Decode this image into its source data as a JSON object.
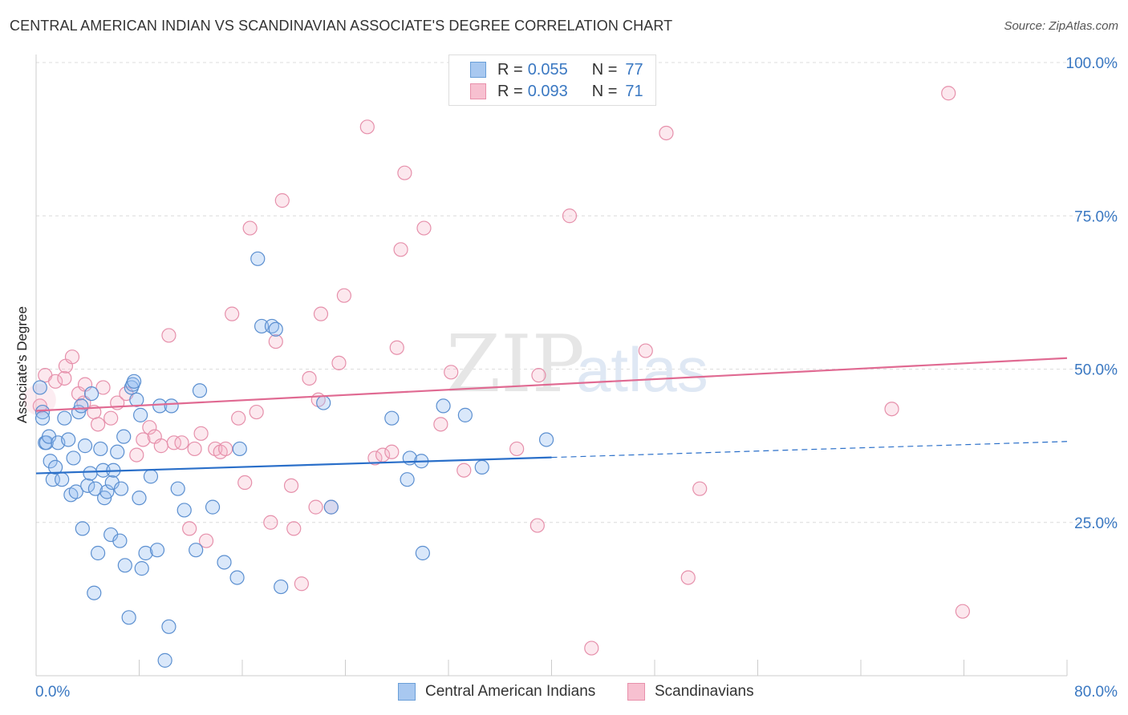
{
  "title": "CENTRAL AMERICAN INDIAN VS SCANDINAVIAN ASSOCIATE'S DEGREE CORRELATION CHART",
  "source": "Source: ZipAtlas.com",
  "watermark": {
    "zip": "ZIP",
    "atlas": "atlas"
  },
  "legend": {
    "rows": [
      {
        "r_label": "R =",
        "r_value": "0.055",
        "n_label": "N =",
        "n_value": "77",
        "color": "#a8c8f0",
        "border": "#6a9fd8"
      },
      {
        "r_label": "R =",
        "r_value": "0.093",
        "n_label": "N =",
        "n_value": "71",
        "color": "#f7c0d0",
        "border": "#e890ab"
      }
    ]
  },
  "bottom_legend": {
    "series1": "Central American Indians",
    "series2": "Scandinavians"
  },
  "colors": {
    "blue_fill": "rgba(150,190,240,0.35)",
    "blue_stroke": "#5b8fd0",
    "blue_line": "#2a6fc9",
    "pink_fill": "rgba(245,180,200,0.3)",
    "pink_stroke": "#e690ab",
    "pink_line": "#e06a92",
    "axis_text": "#3a78c2"
  },
  "chart_data": {
    "type": "scatter",
    "title": "CENTRAL AMERICAN INDIAN VS SCANDINAVIAN ASSOCIATE'S DEGREE CORRELATION CHART",
    "xlabel": "",
    "ylabel": "Associate's Degree",
    "xlim": [
      0,
      80
    ],
    "ylim": [
      0,
      100
    ],
    "x_ticks": [
      "0.0%",
      "80.0%"
    ],
    "y_ticks": [
      "25.0%",
      "50.0%",
      "75.0%",
      "100.0%"
    ],
    "grid": true,
    "series": [
      {
        "name": "Central American Indians",
        "r": 0.055,
        "n": 77,
        "trend": {
          "x_start": 0,
          "y_start": 33.0,
          "x_solid_end": 40,
          "y_solid_end": 35.6,
          "x_end": 80,
          "y_end": 38.2
        },
        "points": [
          [
            0.3,
            47
          ],
          [
            0.5,
            43
          ],
          [
            0.5,
            42
          ],
          [
            0.7,
            38
          ],
          [
            0.8,
            38
          ],
          [
            1.0,
            39
          ],
          [
            1.1,
            35
          ],
          [
            1.3,
            32
          ],
          [
            1.5,
            34
          ],
          [
            1.7,
            38
          ],
          [
            2.0,
            32
          ],
          [
            2.2,
            42
          ],
          [
            2.5,
            38.5
          ],
          [
            2.7,
            29.5
          ],
          [
            2.9,
            35.5
          ],
          [
            3.1,
            30
          ],
          [
            3.3,
            43
          ],
          [
            3.5,
            44
          ],
          [
            3.6,
            24
          ],
          [
            3.8,
            37.5
          ],
          [
            4.0,
            31
          ],
          [
            4.2,
            33
          ],
          [
            4.3,
            46
          ],
          [
            4.5,
            13.5
          ],
          [
            4.6,
            30.5
          ],
          [
            4.8,
            20
          ],
          [
            5.0,
            37
          ],
          [
            5.2,
            33.5
          ],
          [
            5.3,
            29
          ],
          [
            5.5,
            30
          ],
          [
            5.8,
            23
          ],
          [
            5.9,
            31.5
          ],
          [
            6.0,
            33.5
          ],
          [
            6.3,
            36.5
          ],
          [
            6.5,
            22
          ],
          [
            6.6,
            30.5
          ],
          [
            6.8,
            39
          ],
          [
            6.9,
            18
          ],
          [
            7.2,
            9.5
          ],
          [
            7.4,
            47
          ],
          [
            7.5,
            47.5
          ],
          [
            7.6,
            48
          ],
          [
            7.8,
            45
          ],
          [
            8.0,
            29
          ],
          [
            8.1,
            42.5
          ],
          [
            8.2,
            17.5
          ],
          [
            8.5,
            20
          ],
          [
            8.9,
            32.5
          ],
          [
            9.4,
            20.5
          ],
          [
            9.6,
            44
          ],
          [
            10.0,
            2.5
          ],
          [
            10.3,
            8
          ],
          [
            10.5,
            44
          ],
          [
            11.0,
            30.5
          ],
          [
            11.5,
            27
          ],
          [
            12.4,
            20.5
          ],
          [
            12.7,
            46.5
          ],
          [
            13.7,
            27.5
          ],
          [
            14.6,
            18.5
          ],
          [
            15.6,
            16
          ],
          [
            15.8,
            37
          ],
          [
            17.2,
            68
          ],
          [
            17.5,
            57
          ],
          [
            18.3,
            57
          ],
          [
            19.0,
            14.5
          ],
          [
            22.3,
            44.5
          ],
          [
            22.9,
            27.5
          ],
          [
            27.6,
            42
          ],
          [
            28.8,
            32
          ],
          [
            29.0,
            35.5
          ],
          [
            29.9,
            35
          ],
          [
            30.0,
            20
          ],
          [
            31.6,
            44
          ],
          [
            33.3,
            42.5
          ],
          [
            34.6,
            34
          ],
          [
            39.6,
            38.5
          ],
          [
            18.6,
            56.5
          ]
        ]
      },
      {
        "name": "Scandinavians",
        "r": 0.093,
        "n": 71,
        "trend": {
          "x_start": 0,
          "y_start": 43.2,
          "x_end": 80,
          "y_end": 51.8
        },
        "points": [
          [
            0.3,
            44
          ],
          [
            0.7,
            49
          ],
          [
            1.5,
            48
          ],
          [
            2.2,
            48.5
          ],
          [
            2.3,
            50.5
          ],
          [
            2.8,
            52
          ],
          [
            3.3,
            46
          ],
          [
            3.7,
            44.5
          ],
          [
            3.8,
            47.5
          ],
          [
            4.5,
            43
          ],
          [
            4.8,
            41
          ],
          [
            5.2,
            47
          ],
          [
            5.8,
            42
          ],
          [
            6.3,
            44.5
          ],
          [
            7.0,
            46
          ],
          [
            7.8,
            36
          ],
          [
            8.3,
            38.5
          ],
          [
            8.8,
            40.5
          ],
          [
            9.2,
            39
          ],
          [
            9.7,
            37.5
          ],
          [
            10.3,
            55.5
          ],
          [
            10.7,
            38
          ],
          [
            11.3,
            38
          ],
          [
            11.9,
            24
          ],
          [
            12.3,
            37
          ],
          [
            12.8,
            39.5
          ],
          [
            13.2,
            22
          ],
          [
            13.9,
            37
          ],
          [
            14.3,
            36.5
          ],
          [
            14.7,
            37
          ],
          [
            15.2,
            59
          ],
          [
            15.7,
            42
          ],
          [
            16.2,
            31.5
          ],
          [
            16.6,
            73
          ],
          [
            17.1,
            43
          ],
          [
            18.2,
            25
          ],
          [
            18.6,
            54.5
          ],
          [
            19.1,
            77.5
          ],
          [
            19.8,
            31
          ],
          [
            20.0,
            24
          ],
          [
            20.6,
            15
          ],
          [
            21.2,
            48.5
          ],
          [
            21.7,
            27.5
          ],
          [
            22.1,
            59
          ],
          [
            22.9,
            27.5
          ],
          [
            23.5,
            51
          ],
          [
            23.9,
            62
          ],
          [
            25.7,
            89.5
          ],
          [
            26.3,
            35.5
          ],
          [
            26.9,
            36
          ],
          [
            27.6,
            36.5
          ],
          [
            28.0,
            53.5
          ],
          [
            28.3,
            69.5
          ],
          [
            28.6,
            82
          ],
          [
            30.1,
            73
          ],
          [
            31.4,
            41
          ],
          [
            32.2,
            49.5
          ],
          [
            33.2,
            33.5
          ],
          [
            37.3,
            37
          ],
          [
            39.0,
            49
          ],
          [
            38.9,
            24.5
          ],
          [
            43.1,
            4.5
          ],
          [
            41.4,
            75
          ],
          [
            47.3,
            53
          ],
          [
            48.9,
            88.5
          ],
          [
            50.6,
            16
          ],
          [
            51.5,
            30.5
          ],
          [
            66.4,
            43.5
          ],
          [
            70.8,
            95
          ],
          [
            71.9,
            10.5
          ],
          [
            21.9,
            45
          ]
        ]
      }
    ]
  }
}
